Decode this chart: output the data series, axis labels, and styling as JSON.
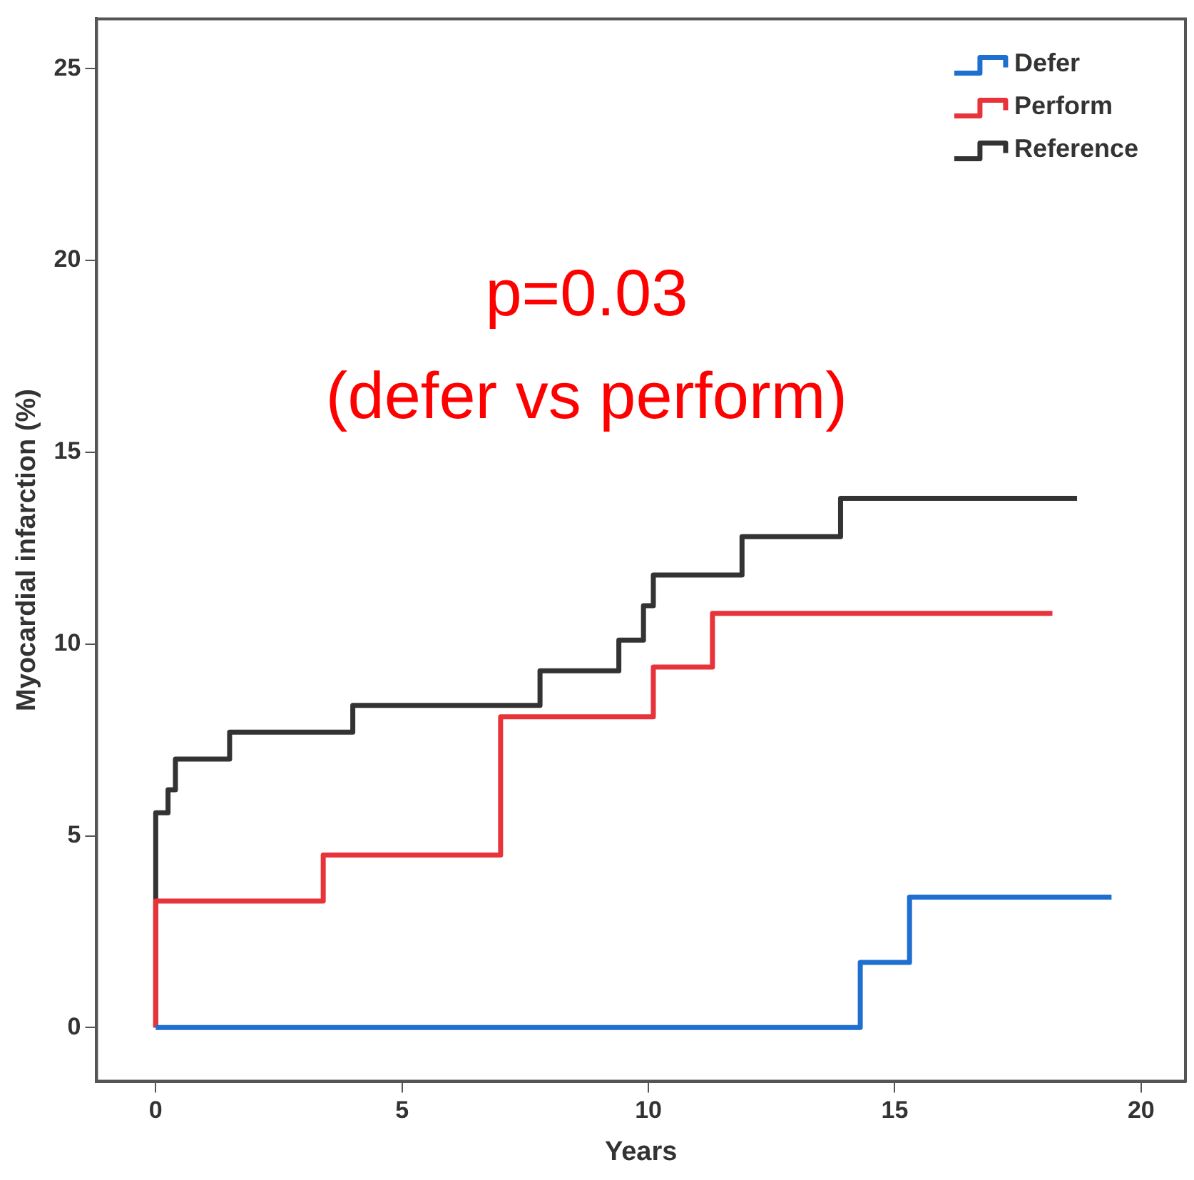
{
  "chart_data": {
    "type": "step",
    "xlabel": "Years",
    "ylabel": "Myocardial infarction (%)",
    "xlim": [
      -1.2,
      20.9
    ],
    "ylim": [
      -1.4,
      26.3
    ],
    "xticks": [
      0,
      5,
      10,
      15,
      20
    ],
    "yticks": [
      0,
      5,
      10,
      15,
      20,
      25
    ],
    "grid": false,
    "legend": "top right",
    "annotations": [
      "p=0.03",
      "(defer vs perform)"
    ],
    "series": [
      {
        "name": "Defer",
        "color": "#1f6fd0",
        "x": [
          0,
          14.3,
          15.3,
          19.4
        ],
        "values": [
          0,
          1.7,
          3.4,
          3.4
        ]
      },
      {
        "name": "Perform",
        "color": "#e8333b",
        "x": [
          0,
          0,
          3.4,
          7.0,
          10.1,
          11.3,
          18.2
        ],
        "values": [
          0,
          3.3,
          4.5,
          8.1,
          9.4,
          10.8,
          10.8
        ]
      },
      {
        "name": "Reference",
        "color": "#333333",
        "x": [
          0,
          0,
          0.25,
          0.4,
          1.5,
          4.0,
          7.8,
          9.4,
          9.9,
          10.1,
          11.9,
          13.9,
          18.7
        ],
        "values": [
          0,
          5.6,
          6.2,
          7.0,
          7.7,
          8.4,
          9.3,
          10.1,
          11.0,
          11.8,
          12.8,
          13.8,
          13.8
        ]
      }
    ]
  }
}
